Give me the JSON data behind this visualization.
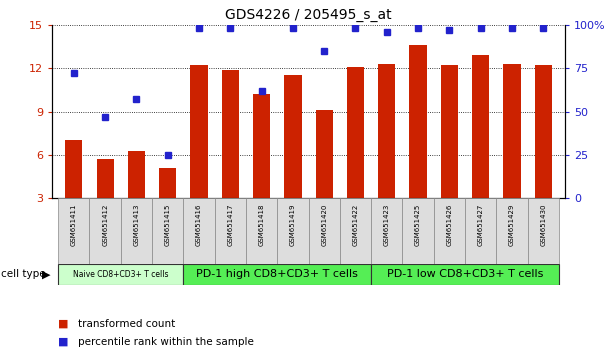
{
  "title": "GDS4226 / 205495_s_at",
  "samples": [
    "GSM651411",
    "GSM651412",
    "GSM651413",
    "GSM651415",
    "GSM651416",
    "GSM651417",
    "GSM651418",
    "GSM651419",
    "GSM651420",
    "GSM651422",
    "GSM651423",
    "GSM651425",
    "GSM651426",
    "GSM651427",
    "GSM651429",
    "GSM651430"
  ],
  "bar_values": [
    7.0,
    5.7,
    6.3,
    5.1,
    12.2,
    11.9,
    10.2,
    11.5,
    9.1,
    12.1,
    12.3,
    13.6,
    12.2,
    12.9,
    12.3,
    12.2
  ],
  "dot_values": [
    72,
    47,
    57,
    25,
    98,
    98,
    62,
    98,
    85,
    98,
    96,
    98,
    97,
    98,
    98,
    98
  ],
  "bar_color": "#cc2200",
  "dot_color": "#2222cc",
  "ylim_left": [
    3,
    15
  ],
  "ylim_right": [
    0,
    100
  ],
  "yticks_left": [
    3,
    6,
    9,
    12,
    15
  ],
  "yticks_right": [
    0,
    25,
    50,
    75,
    100
  ],
  "ytick_labels_right": [
    "0",
    "25",
    "50",
    "75",
    "100%"
  ],
  "naive_color": "#ccffcc",
  "pd1_color": "#55ee55",
  "cell_type_label": "cell type",
  "legend_bar_label": "transformed count",
  "legend_dot_label": "percentile rank within the sample",
  "tick_color_left": "#cc2200",
  "tick_color_right": "#2222cc",
  "group_defs": [
    {
      "start": 0,
      "end": 3,
      "label": "Naive CD8+CD3+ T cells",
      "color": "#ccffcc"
    },
    {
      "start": 4,
      "end": 9,
      "label": "PD-1 high CD8+CD3+ T cells",
      "color": "#55ee55"
    },
    {
      "start": 10,
      "end": 15,
      "label": "PD-1 low CD8+CD3+ T cells",
      "color": "#55ee55"
    }
  ]
}
